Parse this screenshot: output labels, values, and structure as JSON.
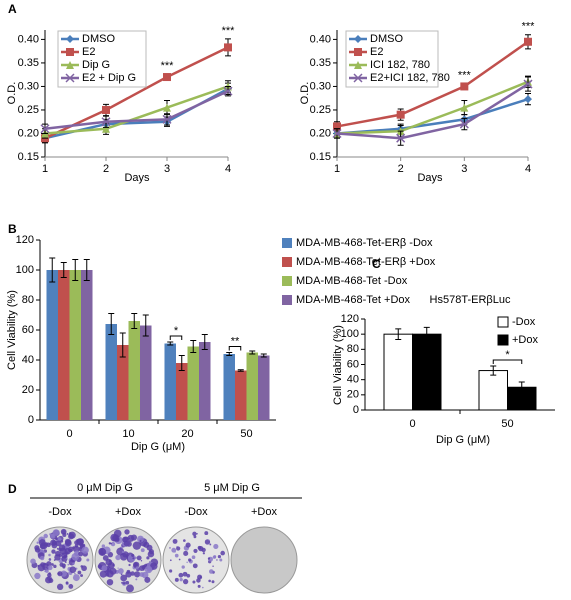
{
  "panel_labels": [
    "A",
    "B",
    "C",
    "D"
  ],
  "chart_data": [
    {
      "type": "line",
      "x": [
        1,
        2,
        3,
        4
      ],
      "xlim": [
        1,
        4
      ],
      "xticks": [
        1,
        2,
        3,
        4
      ],
      "ylim": [
        0.15,
        0.42
      ],
      "yticks": [
        0.15,
        {
          "value": 0.2,
          "label": "0.20"
        },
        0.25,
        {
          "value": 0.3,
          "label": "0.30"
        },
        0.35,
        {
          "value": 0.4,
          "label": "0.40"
        }
      ],
      "xlabel": "Days",
      "ylabel": "O.D.",
      "series": [
        {
          "name": "DMSO",
          "color": "#4a7ebb",
          "marker": "diamond",
          "values": [
            0.19,
            0.22,
            0.225,
            0.295
          ],
          "errors": [
            0.008,
            0.01,
            0.01,
            0.012
          ]
        },
        {
          "name": "E2",
          "color": "#c0504d",
          "marker": "square",
          "values": [
            0.19,
            0.25,
            0.32,
            0.383
          ],
          "errors": [
            0.01,
            0.012,
            0.006,
            0.018
          ]
        },
        {
          "name": "Dip G",
          "color": "#9bbb59",
          "marker": "triangle",
          "values": [
            0.2,
            0.21,
            0.255,
            0.3
          ],
          "errors": [
            0.01,
            0.012,
            0.015,
            0.012
          ]
        },
        {
          "name": "E2 + Dip G",
          "color": "#8064a2",
          "marker": "x",
          "values": [
            0.21,
            0.225,
            0.23,
            0.29
          ],
          "errors": [
            0.01,
            0.012,
            0.012,
            0.01
          ]
        }
      ],
      "annotations": [
        {
          "text": "***",
          "x": 3
        },
        {
          "text": "***",
          "x": 4
        }
      ]
    },
    {
      "type": "line",
      "x": [
        1,
        2,
        3,
        4
      ],
      "xlim": [
        1,
        4
      ],
      "xticks": [
        1,
        2,
        3,
        4
      ],
      "ylim": [
        0.15,
        0.42
      ],
      "yticks": [
        0.15,
        {
          "value": 0.2,
          "label": "0.20"
        },
        0.25,
        {
          "value": 0.3,
          "label": "0.30"
        },
        0.35,
        {
          "value": 0.4,
          "label": "0.40"
        }
      ],
      "xlabel": "Days",
      "ylabel": "O.D.",
      "series": [
        {
          "name": "DMSO",
          "color": "#4a7ebb",
          "marker": "diamond",
          "values": [
            0.2,
            0.21,
            0.23,
            0.273
          ],
          "errors": [
            0.008,
            0.01,
            0.01,
            0.012
          ]
        },
        {
          "name": "E2",
          "color": "#c0504d",
          "marker": "square",
          "values": [
            0.215,
            0.24,
            0.3,
            0.395
          ],
          "errors": [
            0.01,
            0.012,
            0.006,
            0.015
          ]
        },
        {
          "name": "ICI 182, 780",
          "color": "#9bbb59",
          "marker": "triangle",
          "values": [
            0.2,
            0.205,
            0.255,
            0.31
          ],
          "errors": [
            0.01,
            0.012,
            0.015,
            0.012
          ]
        },
        {
          "name": "E2+ICI 182, 780",
          "color": "#8064a2",
          "marker": "x",
          "values": [
            0.2,
            0.19,
            0.22,
            0.305
          ],
          "errors": [
            0.01,
            0.015,
            0.012,
            0.015
          ]
        }
      ],
      "annotations": [
        {
          "text": "***",
          "x": 3
        },
        {
          "text": "***",
          "x": 4
        }
      ]
    },
    {
      "type": "bar",
      "categories": [
        "0",
        "10",
        "20",
        "50"
      ],
      "ylim": [
        0,
        120
      ],
      "yticks": [
        0,
        20,
        40,
        60,
        80,
        100,
        120
      ],
      "xlabel": "Dip G (μM)",
      "ylabel": "Cell Viability (%)",
      "series": [
        {
          "name": "MDA-MB-468-Tet-ERβ -Dox",
          "color": "#4f81bd",
          "values": [
            100,
            64,
            51,
            44
          ],
          "errors": [
            8,
            7,
            1,
            1
          ]
        },
        {
          "name": "MDA-MB-468-Tet-ERβ +Dox",
          "color": "#c0504d",
          "values": [
            100,
            50,
            38,
            33
          ],
          "errors": [
            5,
            8,
            5,
            0.5
          ]
        },
        {
          "name": "MDA-MB-468-Tet -Dox",
          "color": "#9bbb59",
          "values": [
            100,
            66,
            49,
            45
          ],
          "errors": [
            7,
            5,
            4,
            1
          ]
        },
        {
          "name": "MDA-MB-468-Tet +Dox",
          "color": "#8064a2",
          "values": [
            100,
            63,
            52,
            43
          ],
          "errors": [
            7,
            7,
            5,
            1
          ]
        }
      ],
      "annotations": [
        {
          "text": "*",
          "category": "20"
        },
        {
          "text": "**",
          "category": "50"
        }
      ]
    },
    {
      "type": "bar",
      "title": "Hs578T-ERβLuc",
      "categories": [
        "0",
        "50"
      ],
      "ylim": [
        0,
        120
      ],
      "yticks": [
        0,
        20,
        40,
        60,
        80,
        100,
        120
      ],
      "xlabel": "Dip G (μM)",
      "ylabel": "Cell Viability (%)",
      "series": [
        {
          "name": "-Dox",
          "color": "#ffffff",
          "edgecolor": "#000000",
          "values": [
            100,
            52
          ],
          "errors": [
            7,
            6
          ]
        },
        {
          "name": "+Dox",
          "color": "#000000",
          "edgecolor": "#000000",
          "values": [
            100,
            30
          ],
          "errors": [
            9,
            7
          ]
        }
      ],
      "annotations": [
        {
          "text": "*",
          "category": "50"
        }
      ]
    }
  ],
  "panel_d": {
    "groups": [
      "0 μM Dip G",
      "5 μM Dip G"
    ],
    "columns": [
      "-Dox",
      "+Dox",
      "-Dox",
      "+Dox"
    ]
  }
}
